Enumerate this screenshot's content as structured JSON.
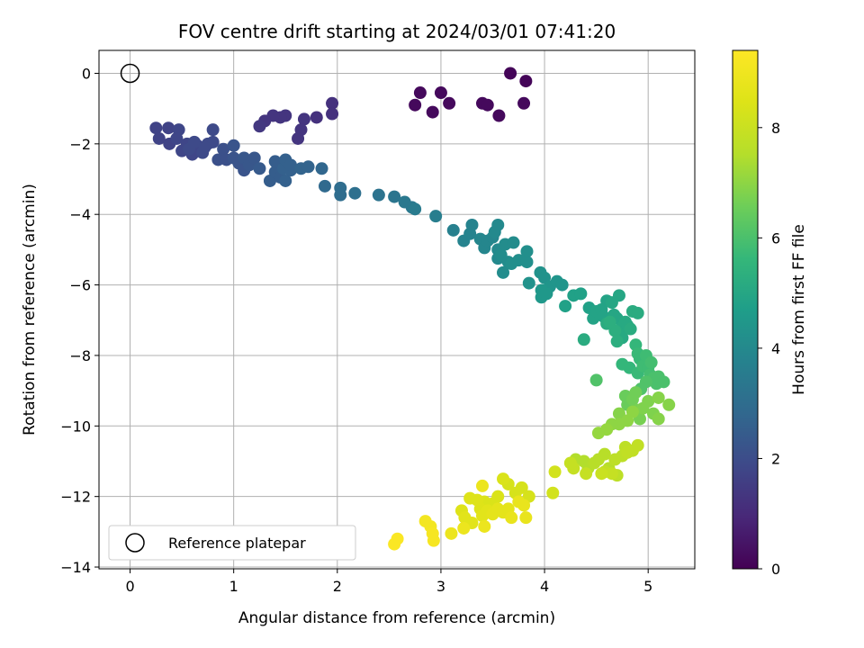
{
  "chart_data": {
    "type": "scatter",
    "title": "FOV centre drift starting at 2024/03/01 07:41:20",
    "xlabel": "Angular distance from reference (arcmin)",
    "ylabel": "Rotation from reference (arcmin)",
    "xlim": [
      -0.3,
      5.45
    ],
    "ylim": [
      -14.05,
      0.65
    ],
    "xticks": [
      0,
      1,
      2,
      3,
      4,
      5
    ],
    "yticks": [
      0,
      -2,
      -4,
      -6,
      -8,
      -10,
      -12,
      -14
    ],
    "xtick_labels": [
      "0",
      "1",
      "2",
      "3",
      "4",
      "5"
    ],
    "ytick_labels": [
      "0",
      "−2",
      "−4",
      "−6",
      "−8",
      "−10",
      "−12",
      "−14"
    ],
    "grid": true,
    "colorbar": {
      "label": "Hours from first FF file",
      "colormap": "viridis",
      "range": [
        0,
        9.4
      ],
      "ticks": [
        0,
        2,
        4,
        6,
        8
      ],
      "tick_labels": [
        "0",
        "2",
        "4",
        "6",
        "8"
      ]
    },
    "legend": {
      "placement": "lower-left",
      "entries": [
        {
          "label": "Reference platepar",
          "marker": "open-circle"
        }
      ]
    },
    "reference_point": {
      "x": 0,
      "y": 0
    },
    "series": [
      {
        "points": [
          [
            3.67,
            0.0,
            0.1
          ],
          [
            3.82,
            -0.22,
            0.1
          ],
          [
            2.8,
            -0.55,
            0.2
          ],
          [
            3.0,
            -0.55,
            0.2
          ],
          [
            3.08,
            -0.85,
            0.2
          ],
          [
            2.75,
            -0.9,
            0.2
          ],
          [
            2.92,
            -1.1,
            0.2
          ],
          [
            3.4,
            -0.85,
            0.2
          ],
          [
            3.45,
            -0.9,
            0.2
          ],
          [
            3.56,
            -1.2,
            0.2
          ],
          [
            3.8,
            -0.85,
            0.2
          ],
          [
            1.95,
            -0.85,
            1.2
          ],
          [
            1.95,
            -1.15,
            1.2
          ],
          [
            1.8,
            -1.25,
            1.2
          ],
          [
            1.68,
            -1.3,
            1.3
          ],
          [
            1.65,
            -1.6,
            1.3
          ],
          [
            1.62,
            -1.85,
            1.3
          ],
          [
            1.5,
            -1.2,
            1.3
          ],
          [
            1.45,
            -1.25,
            1.3
          ],
          [
            1.38,
            -1.2,
            1.3
          ],
          [
            1.3,
            -1.35,
            1.3
          ],
          [
            1.25,
            -1.5,
            1.4
          ],
          [
            0.25,
            -1.55,
            1.7
          ],
          [
            0.28,
            -1.85,
            1.7
          ],
          [
            0.37,
            -1.55,
            1.7
          ],
          [
            0.38,
            -2.0,
            1.7
          ],
          [
            0.47,
            -1.6,
            1.8
          ],
          [
            0.45,
            -1.85,
            1.8
          ],
          [
            0.5,
            -2.2,
            1.8
          ],
          [
            0.55,
            -2.0,
            1.8
          ],
          [
            0.6,
            -2.3,
            1.8
          ],
          [
            0.65,
            -2.05,
            1.8
          ],
          [
            0.7,
            -2.25,
            1.9
          ],
          [
            0.75,
            -2.0,
            1.9
          ],
          [
            0.8,
            -1.95,
            1.9
          ],
          [
            0.8,
            -1.6,
            1.9
          ],
          [
            0.57,
            -2.15,
            1.9
          ],
          [
            0.62,
            -1.95,
            1.9
          ],
          [
            0.72,
            -2.1,
            1.9
          ],
          [
            0.85,
            -2.45,
            2.1
          ],
          [
            0.9,
            -2.15,
            2.1
          ],
          [
            0.93,
            -2.45,
            2.1
          ],
          [
            1.0,
            -2.4,
            2.2
          ],
          [
            1.0,
            -2.05,
            2.2
          ],
          [
            1.05,
            -2.55,
            2.2
          ],
          [
            1.1,
            -2.75,
            2.2
          ],
          [
            1.1,
            -2.4,
            2.3
          ],
          [
            1.15,
            -2.6,
            2.3
          ],
          [
            1.2,
            -2.4,
            2.3
          ],
          [
            1.25,
            -2.7,
            2.4
          ],
          [
            1.35,
            -3.05,
            2.5
          ],
          [
            1.4,
            -2.8,
            2.5
          ],
          [
            1.4,
            -2.5,
            2.5
          ],
          [
            1.45,
            -2.95,
            2.5
          ],
          [
            1.48,
            -2.7,
            2.6
          ],
          [
            1.5,
            -2.45,
            2.6
          ],
          [
            1.5,
            -3.05,
            2.6
          ],
          [
            1.55,
            -2.75,
            2.6
          ],
          [
            1.55,
            -2.6,
            2.6
          ],
          [
            1.65,
            -2.7,
            2.7
          ],
          [
            1.72,
            -2.65,
            2.7
          ],
          [
            1.85,
            -2.7,
            2.8
          ],
          [
            1.88,
            -3.2,
            2.9
          ],
          [
            2.03,
            -3.25,
            3.0
          ],
          [
            2.03,
            -3.45,
            3.0
          ],
          [
            2.17,
            -3.4,
            3.1
          ],
          [
            2.4,
            -3.45,
            3.2
          ],
          [
            2.55,
            -3.5,
            3.3
          ],
          [
            2.65,
            -3.65,
            3.4
          ],
          [
            2.72,
            -3.8,
            3.4
          ],
          [
            2.75,
            -3.85,
            3.5
          ],
          [
            2.95,
            -4.05,
            3.6
          ],
          [
            3.12,
            -4.45,
            3.7
          ],
          [
            3.22,
            -4.75,
            3.8
          ],
          [
            3.28,
            -4.55,
            3.8
          ],
          [
            3.3,
            -4.3,
            3.8
          ],
          [
            3.38,
            -4.7,
            3.9
          ],
          [
            3.42,
            -4.95,
            3.9
          ],
          [
            3.45,
            -4.75,
            3.9
          ],
          [
            3.5,
            -4.65,
            3.9
          ],
          [
            3.52,
            -4.5,
            4.0
          ],
          [
            3.55,
            -4.3,
            4.0
          ],
          [
            3.55,
            -5.0,
            4.0
          ],
          [
            3.55,
            -5.25,
            4.0
          ],
          [
            3.58,
            -5.15,
            4.1
          ],
          [
            3.62,
            -4.85,
            4.1
          ],
          [
            3.65,
            -5.35,
            4.1
          ],
          [
            3.6,
            -5.65,
            4.1
          ],
          [
            3.7,
            -4.8,
            4.1
          ],
          [
            3.75,
            -5.3,
            4.2
          ],
          [
            3.68,
            -5.4,
            4.2
          ],
          [
            3.83,
            -5.35,
            4.2
          ],
          [
            3.83,
            -5.05,
            4.2
          ],
          [
            3.85,
            -5.95,
            4.3
          ],
          [
            3.96,
            -5.65,
            4.3
          ],
          [
            4.0,
            -5.8,
            4.3
          ],
          [
            4.05,
            -6.05,
            4.4
          ],
          [
            4.12,
            -5.9,
            4.4
          ],
          [
            4.17,
            -6.0,
            4.4
          ],
          [
            3.97,
            -6.15,
            4.5
          ],
          [
            3.97,
            -6.35,
            4.5
          ],
          [
            4.02,
            -6.25,
            4.5
          ],
          [
            4.2,
            -6.6,
            4.8
          ],
          [
            4.28,
            -6.3,
            4.8
          ],
          [
            4.35,
            -6.25,
            4.8
          ],
          [
            4.43,
            -6.65,
            4.8
          ],
          [
            4.47,
            -6.95,
            4.9
          ],
          [
            4.5,
            -6.75,
            4.9
          ],
          [
            4.55,
            -6.7,
            4.9
          ],
          [
            4.57,
            -6.9,
            4.9
          ],
          [
            4.6,
            -6.45,
            4.9
          ],
          [
            4.65,
            -6.5,
            5.0
          ],
          [
            4.67,
            -6.85,
            5.0
          ],
          [
            4.7,
            -6.95,
            5.0
          ],
          [
            4.72,
            -6.3,
            5.0
          ],
          [
            4.75,
            -7.2,
            5.1
          ],
          [
            4.75,
            -7.5,
            5.1
          ],
          [
            4.78,
            -7.05,
            5.1
          ],
          [
            4.8,
            -7.15,
            5.1
          ],
          [
            4.83,
            -7.25,
            5.2
          ],
          [
            4.85,
            -6.75,
            5.2
          ],
          [
            4.9,
            -6.8,
            5.2
          ],
          [
            4.38,
            -7.55,
            5.2
          ],
          [
            4.6,
            -7.1,
            5.2
          ],
          [
            4.68,
            -7.3,
            5.3
          ],
          [
            4.63,
            -7.05,
            5.3
          ],
          [
            4.7,
            -7.6,
            5.3
          ],
          [
            4.75,
            -8.25,
            5.6
          ],
          [
            4.82,
            -8.35,
            5.6
          ],
          [
            4.88,
            -7.7,
            5.6
          ],
          [
            4.9,
            -7.95,
            5.7
          ],
          [
            4.9,
            -8.5,
            5.7
          ],
          [
            4.92,
            -8.1,
            5.7
          ],
          [
            4.95,
            -8.3,
            5.8
          ],
          [
            4.98,
            -8.0,
            5.8
          ],
          [
            5.0,
            -8.35,
            5.8
          ],
          [
            5.02,
            -8.55,
            5.9
          ],
          [
            5.03,
            -8.2,
            5.9
          ],
          [
            5.05,
            -8.65,
            6.0
          ],
          [
            5.08,
            -8.8,
            6.0
          ],
          [
            5.1,
            -8.6,
            6.0
          ],
          [
            5.15,
            -8.75,
            6.0
          ],
          [
            4.98,
            -8.75,
            6.1
          ],
          [
            4.5,
            -8.7,
            6.1
          ],
          [
            4.93,
            -8.95,
            6.1
          ],
          [
            4.78,
            -9.15,
            6.5
          ],
          [
            4.8,
            -9.4,
            6.5
          ],
          [
            4.85,
            -9.25,
            6.6
          ],
          [
            4.88,
            -9.05,
            6.6
          ],
          [
            4.9,
            -9.55,
            6.7
          ],
          [
            4.92,
            -9.8,
            6.7
          ],
          [
            4.95,
            -9.5,
            6.8
          ],
          [
            5.0,
            -9.3,
            6.8
          ],
          [
            5.05,
            -9.65,
            6.8
          ],
          [
            5.1,
            -9.2,
            6.9
          ],
          [
            5.2,
            -9.4,
            6.9
          ],
          [
            5.1,
            -9.8,
            6.9
          ],
          [
            4.72,
            -9.65,
            6.9
          ],
          [
            4.72,
            -9.95,
            7.0
          ],
          [
            4.8,
            -9.85,
            7.0
          ],
          [
            4.85,
            -9.6,
            7.0
          ],
          [
            4.65,
            -9.95,
            7.0
          ],
          [
            4.6,
            -10.1,
            7.1
          ],
          [
            4.52,
            -10.2,
            7.1
          ],
          [
            4.3,
            -10.95,
            7.5
          ],
          [
            4.38,
            -11.0,
            7.5
          ],
          [
            4.42,
            -11.2,
            7.5
          ],
          [
            4.48,
            -11.05,
            7.6
          ],
          [
            4.52,
            -10.95,
            7.6
          ],
          [
            4.58,
            -10.8,
            7.6
          ],
          [
            4.62,
            -11.2,
            7.6
          ],
          [
            4.68,
            -10.95,
            7.7
          ],
          [
            4.7,
            -11.4,
            7.7
          ],
          [
            4.75,
            -10.85,
            7.7
          ],
          [
            4.78,
            -10.6,
            7.7
          ],
          [
            4.8,
            -10.75,
            7.8
          ],
          [
            4.85,
            -10.7,
            7.8
          ],
          [
            4.9,
            -10.55,
            7.8
          ],
          [
            4.58,
            -11.3,
            7.8
          ],
          [
            4.65,
            -11.35,
            7.9
          ],
          [
            4.28,
            -11.2,
            7.9
          ],
          [
            4.25,
            -11.05,
            7.9
          ],
          [
            4.4,
            -11.35,
            7.9
          ],
          [
            4.55,
            -11.35,
            8.0
          ],
          [
            4.1,
            -11.3,
            8.2
          ],
          [
            4.08,
            -11.9,
            8.2
          ],
          [
            3.85,
            -12.0,
            8.3
          ],
          [
            3.78,
            -11.75,
            8.3
          ],
          [
            3.72,
            -11.9,
            8.3
          ],
          [
            3.65,
            -11.65,
            8.3
          ],
          [
            3.6,
            -11.5,
            8.4
          ],
          [
            3.55,
            -12.0,
            8.4
          ],
          [
            3.5,
            -12.2,
            8.4
          ],
          [
            3.42,
            -12.15,
            8.4
          ],
          [
            3.38,
            -12.35,
            8.5
          ],
          [
            3.35,
            -12.1,
            8.5
          ],
          [
            3.28,
            -12.05,
            8.5
          ],
          [
            3.2,
            -12.4,
            8.5
          ],
          [
            3.23,
            -12.6,
            8.6
          ],
          [
            3.3,
            -12.75,
            8.6
          ],
          [
            3.4,
            -12.55,
            8.6
          ],
          [
            3.45,
            -12.4,
            8.6
          ],
          [
            3.5,
            -12.5,
            8.7
          ],
          [
            3.55,
            -12.35,
            8.7
          ],
          [
            3.6,
            -12.45,
            8.7
          ],
          [
            3.65,
            -12.35,
            8.7
          ],
          [
            3.68,
            -12.6,
            8.8
          ],
          [
            3.75,
            -12.15,
            8.8
          ],
          [
            3.8,
            -12.25,
            8.8
          ],
          [
            3.82,
            -12.6,
            8.8
          ],
          [
            3.42,
            -12.85,
            8.9
          ],
          [
            3.1,
            -13.05,
            8.9
          ],
          [
            3.22,
            -12.9,
            8.9
          ],
          [
            3.4,
            -11.7,
            8.9
          ],
          [
            2.85,
            -12.7,
            9.1
          ],
          [
            2.9,
            -12.85,
            9.1
          ],
          [
            2.92,
            -13.05,
            9.2
          ],
          [
            2.93,
            -13.25,
            9.2
          ],
          [
            2.58,
            -13.2,
            9.3
          ],
          [
            2.55,
            -13.35,
            9.3
          ]
        ]
      }
    ]
  }
}
